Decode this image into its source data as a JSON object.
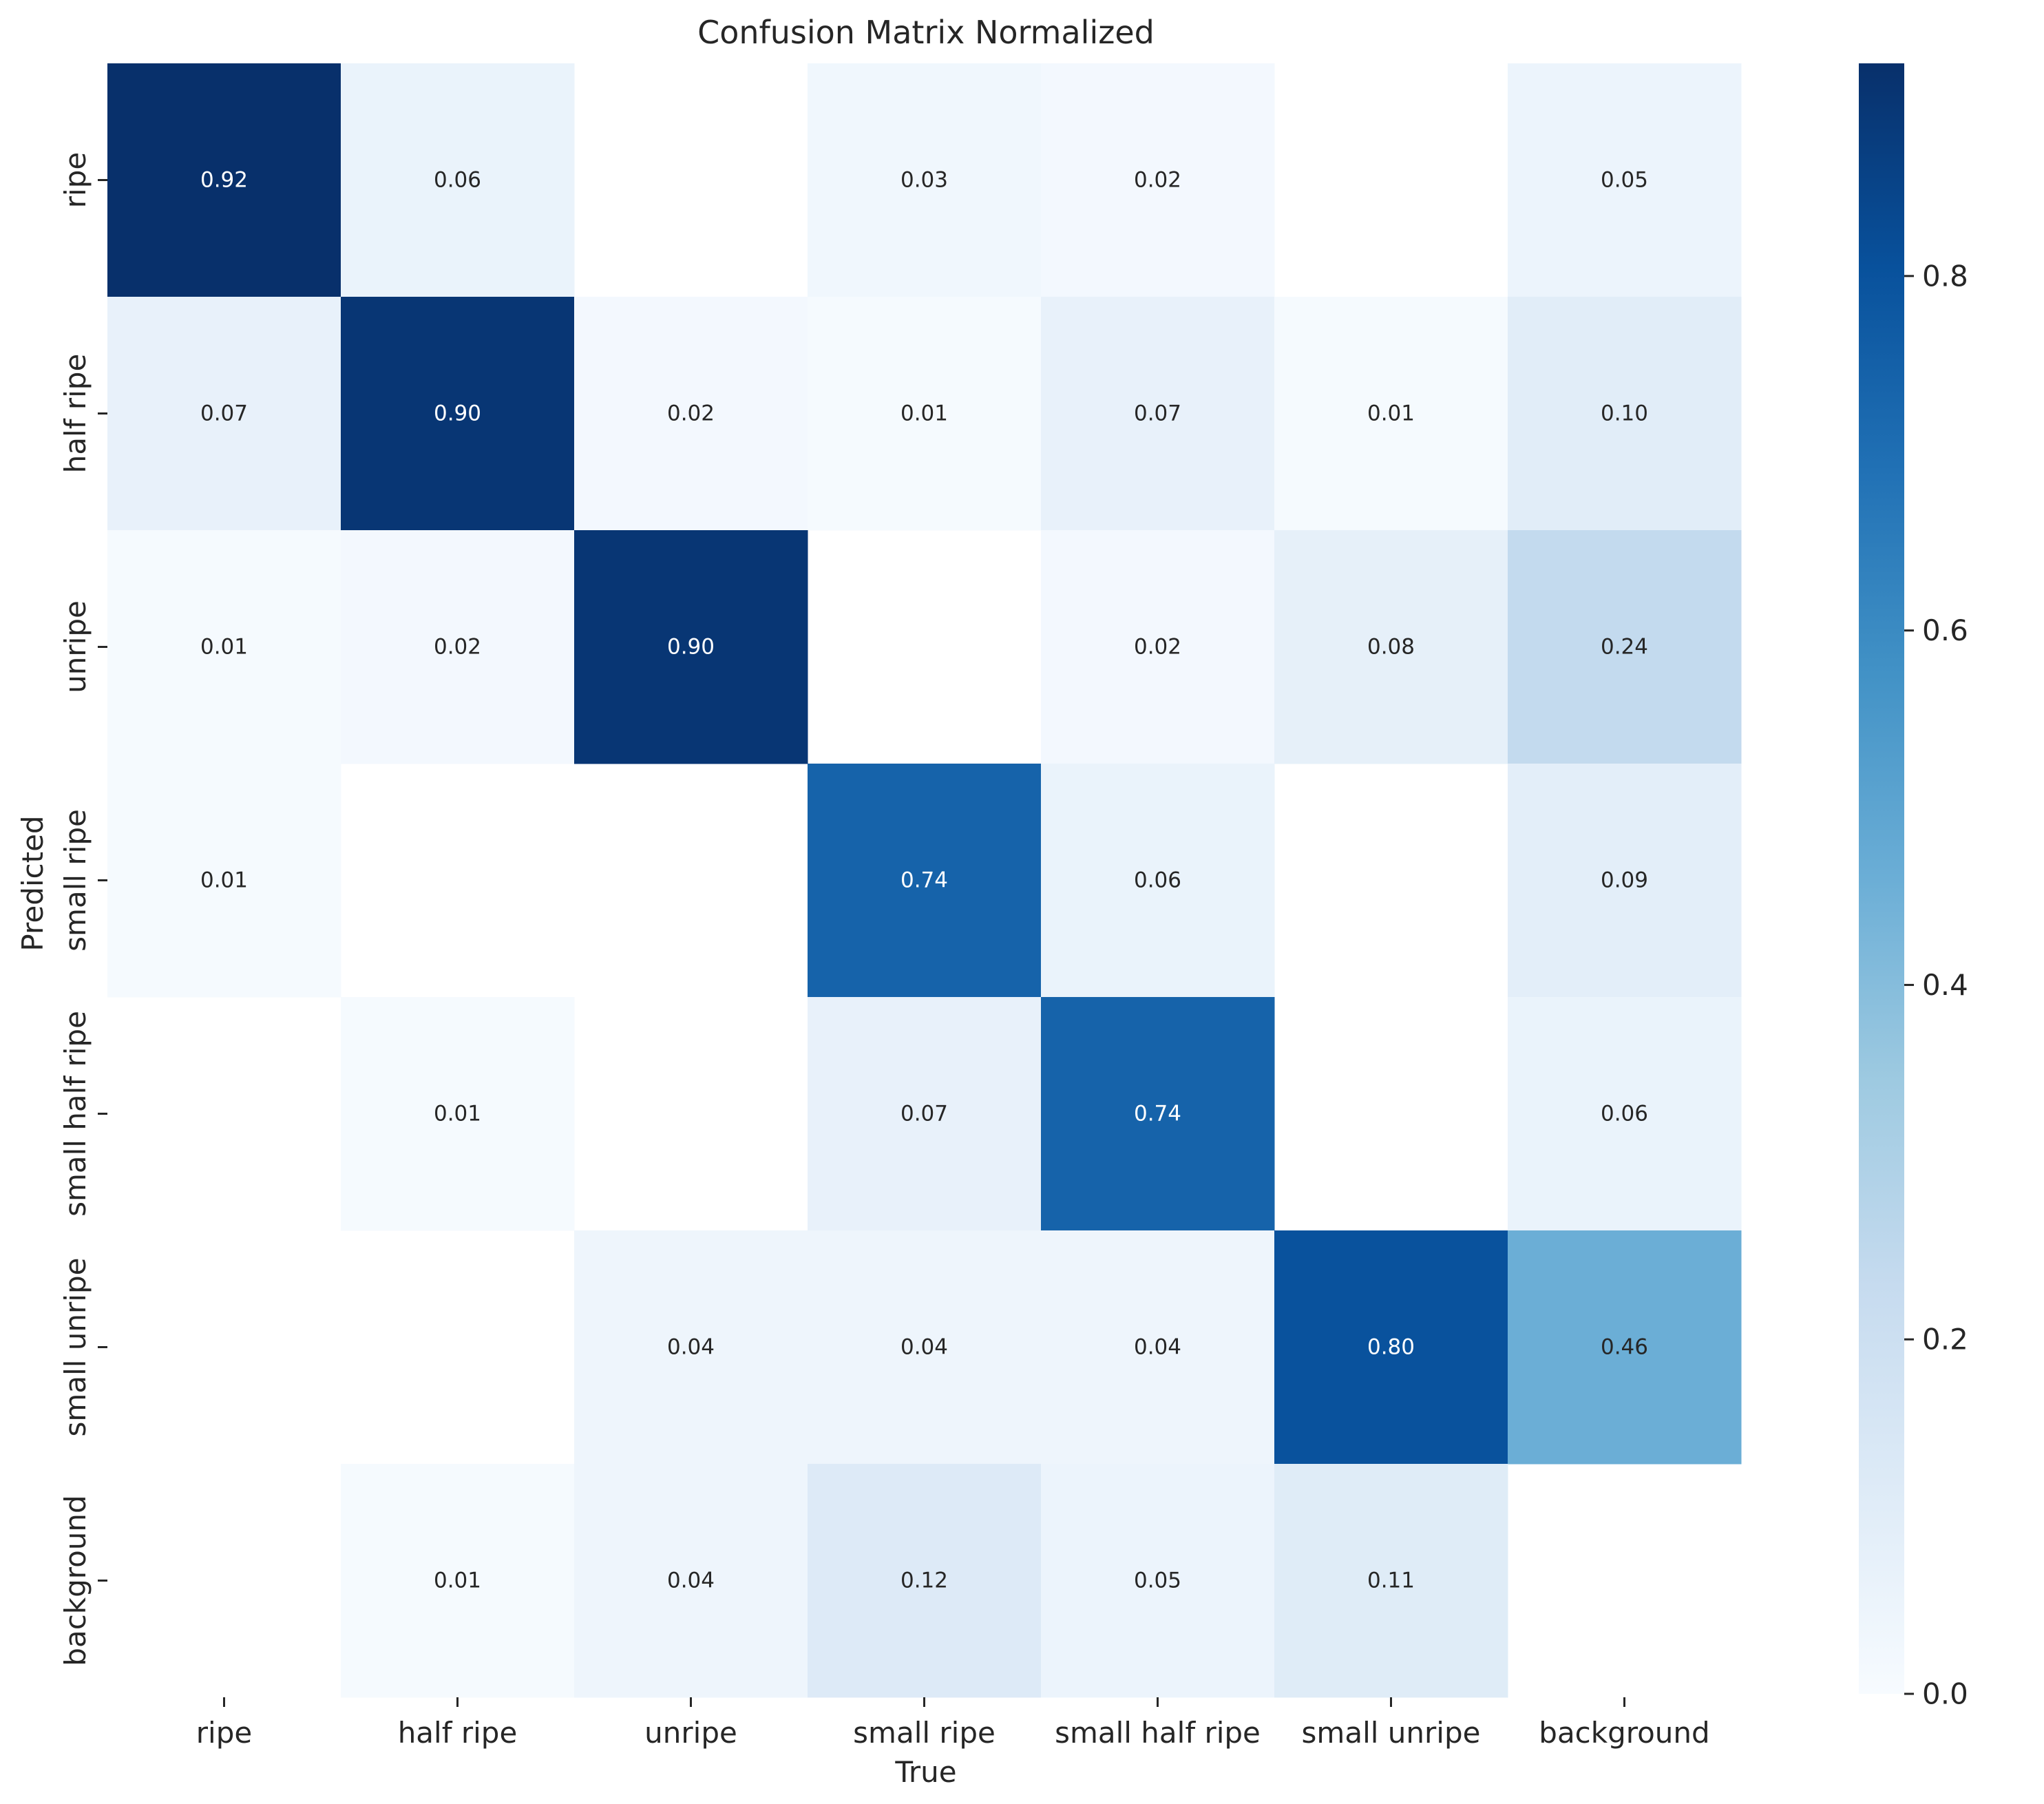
{
  "chart_data": {
    "type": "heatmap",
    "title": "Confusion Matrix Normalized",
    "xlabel": "True",
    "ylabel": "Predicted",
    "x_categories": [
      "ripe",
      "half ripe",
      "unripe",
      "small ripe",
      "small half ripe",
      "small unripe",
      "background"
    ],
    "y_categories": [
      "ripe",
      "half ripe",
      "unripe",
      "small ripe",
      "small half ripe",
      "small unripe",
      "background"
    ],
    "values": [
      [
        0.92,
        0.06,
        null,
        0.03,
        0.02,
        null,
        0.05
      ],
      [
        0.07,
        0.9,
        0.02,
        0.01,
        0.07,
        0.01,
        0.1
      ],
      [
        0.01,
        0.02,
        0.9,
        null,
        0.02,
        0.08,
        0.24
      ],
      [
        0.01,
        null,
        null,
        0.74,
        0.06,
        null,
        0.09
      ],
      [
        null,
        0.01,
        null,
        0.07,
        0.74,
        null,
        0.06
      ],
      [
        null,
        null,
        0.04,
        0.04,
        0.04,
        0.8,
        0.46
      ],
      [
        null,
        0.01,
        0.04,
        0.12,
        0.05,
        0.11,
        null
      ]
    ],
    "value_format": "0.00",
    "colormap": "Blues",
    "colorbar": {
      "vmin": 0.0,
      "vmax": 0.92,
      "ticks": [
        0.0,
        0.2,
        0.4,
        0.6,
        0.8
      ],
      "tick_labels": [
        "0.0",
        "0.2",
        "0.4",
        "0.6",
        "0.8"
      ],
      "placement": "right"
    },
    "colors": {
      "text_dark": "#262626",
      "text_light": "#ffffff",
      "background": "#ffffff"
    }
  }
}
